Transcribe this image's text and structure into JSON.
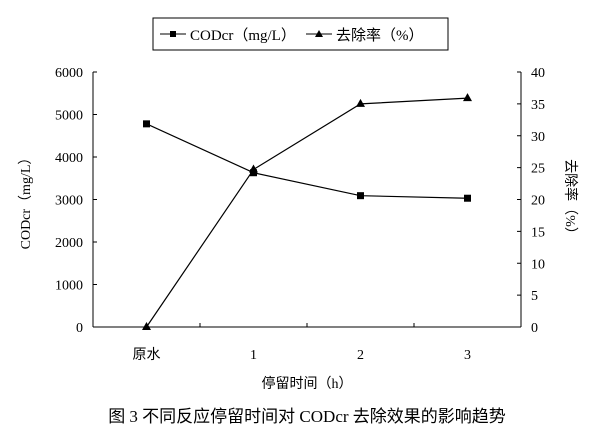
{
  "chart_data": {
    "type": "line",
    "title": "图 3  不同反应停留时间对 CODcr 去除效果的影响趋势",
    "xlabel": "停留时间（h）",
    "ylabel_left": "CODcr（mg/L）",
    "ylabel_right": "去除率（%）",
    "categories": [
      "原水",
      "1",
      "2",
      "3"
    ],
    "ylim_left": [
      0,
      6000
    ],
    "yticks_left": [
      0,
      1000,
      2000,
      3000,
      4000,
      5000,
      6000
    ],
    "ylim_right": [
      0,
      40
    ],
    "yticks_right": [
      0,
      5,
      10,
      15,
      20,
      25,
      30,
      35,
      40
    ],
    "grid": false,
    "legend_position": "top-center",
    "series": [
      {
        "name": "CODcr（mg/L）",
        "axis": "left",
        "marker": "square",
        "values": [
          4780,
          3630,
          3090,
          3030
        ]
      },
      {
        "name": "去除率（%）",
        "axis": "right",
        "marker": "triangle",
        "values": [
          0,
          24.7,
          35.0,
          35.9
        ]
      }
    ]
  }
}
